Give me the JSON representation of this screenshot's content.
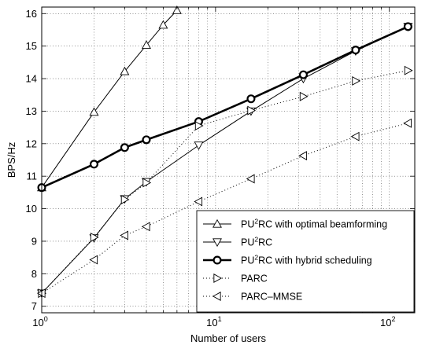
{
  "chart_data": {
    "type": "line",
    "xlabel": "Number of users",
    "ylabel": "BPS/Hz",
    "xscale": "log",
    "xlim": [
      1,
      140
    ],
    "ylim": [
      6.8,
      16.2
    ],
    "grid": true,
    "legend_position": "bottom-right",
    "x_ticks": [
      {
        "value": 1,
        "base": "10",
        "exp": "0"
      },
      {
        "value": 10,
        "base": "10",
        "exp": "1"
      },
      {
        "value": 100,
        "base": "10",
        "exp": "2"
      }
    ],
    "y_ticks": [
      7,
      8,
      9,
      10,
      11,
      12,
      13,
      14,
      15,
      16
    ],
    "series": [
      {
        "name": "PU²RC with optimal beamforming",
        "legend_base": "PU",
        "legend_sup": "2",
        "legend_rest": "RC with optimal beamforming",
        "marker": "triangle-up",
        "line": "solid",
        "width": 1,
        "x": [
          1,
          2,
          3,
          4,
          5,
          6
        ],
        "y": [
          10.65,
          12.97,
          14.22,
          15.03,
          15.65,
          16.1
        ]
      },
      {
        "name": "PU²RC",
        "legend_base": "PU",
        "legend_sup": "2",
        "legend_rest": "RC",
        "marker": "triangle-down",
        "line": "solid",
        "width": 1,
        "x": [
          1,
          2,
          3,
          4,
          8,
          16,
          32,
          64,
          128
        ],
        "y": [
          7.4,
          9.1,
          10.3,
          10.83,
          11.95,
          13.0,
          14.0,
          14.85,
          15.6
        ]
      },
      {
        "name": "PU²RC with hybrid scheduling",
        "legend_base": "PU",
        "legend_sup": "2",
        "legend_rest": "RC with hybrid scheduling",
        "marker": "circle",
        "line": "solid",
        "width": 2.6,
        "x": [
          1,
          2,
          3,
          4,
          8,
          16,
          32,
          64,
          128
        ],
        "y": [
          10.65,
          11.37,
          11.88,
          12.12,
          12.68,
          13.38,
          14.12,
          14.88,
          15.6
        ]
      },
      {
        "name": "PARC",
        "legend_base": "PARC",
        "legend_sup": "",
        "legend_rest": "",
        "marker": "triangle-right",
        "line": "dotted",
        "width": 1,
        "x": [
          1,
          2,
          3,
          4,
          8,
          16,
          32,
          64,
          128
        ],
        "y": [
          7.4,
          9.12,
          10.28,
          10.8,
          12.55,
          13.02,
          13.45,
          13.93,
          14.25
        ]
      },
      {
        "name": "PARC–MMSE",
        "legend_base": "PARC–MMSE",
        "legend_sup": "",
        "legend_rest": "",
        "marker": "triangle-left",
        "line": "dotted",
        "width": 1,
        "x": [
          1,
          2,
          3,
          4,
          8,
          16,
          32,
          64,
          128
        ],
        "y": [
          7.4,
          8.43,
          9.18,
          9.45,
          10.22,
          10.92,
          11.63,
          12.22,
          12.63
        ]
      }
    ]
  }
}
